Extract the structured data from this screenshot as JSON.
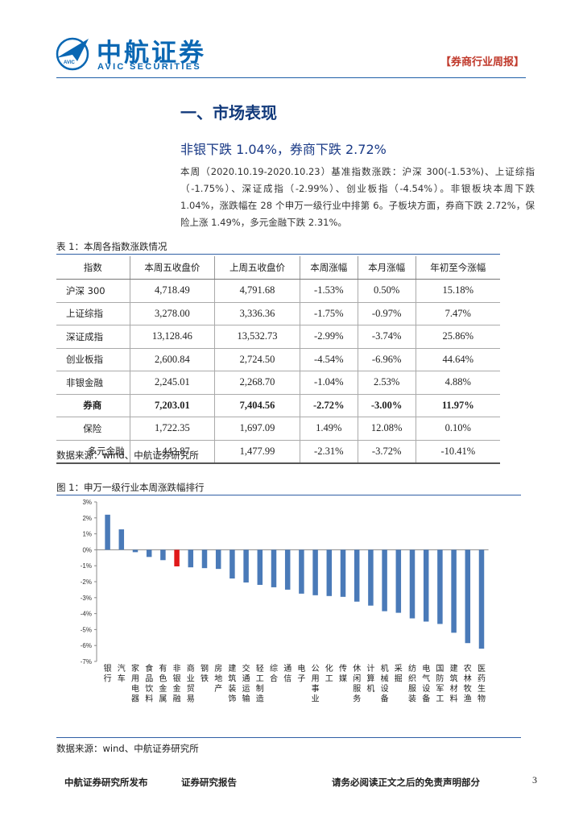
{
  "header": {
    "brand_cn": "中航证券",
    "brand_en": "AVIC SECURITIES",
    "logo_text": "AVIC",
    "report_type": "【券商行业周报】"
  },
  "section": {
    "title": "一、市场表现",
    "subtitle": "非银下跌 1.04%，券商下跌 2.72%",
    "paragraph": "本周（2020.10.19-2020.10.23）基准指数涨跌：沪深 300(-1.53%)、上证综指（-1.75%）、深证成指（-2.99%）、创业板指（-4.54%）。非银板块本周下跌 1.04%，涨跌幅在 28 个申万一级行业中排第 6。子板块方面，券商下跌 2.72%，保险上涨 1.49%，多元金融下跌 2.31%。"
  },
  "table1": {
    "caption": "表 1：本周各指数涨跌情况",
    "headers": [
      "指数",
      "本周五收盘价",
      "上周五收盘价",
      "本周涨幅",
      "本月涨幅",
      "年初至今涨幅"
    ],
    "rows": [
      [
        "沪深 300",
        "4,718.49",
        "4,791.68",
        "-1.53%",
        "0.50%",
        "15.18%"
      ],
      [
        "上证综指",
        "3,278.00",
        "3,336.36",
        "-1.75%",
        "-0.97%",
        "7.47%"
      ],
      [
        "深证成指",
        "13,128.46",
        "13,532.73",
        "-2.99%",
        "-3.74%",
        "25.86%"
      ],
      [
        "创业板指",
        "2,600.84",
        "2,724.50",
        "-4.54%",
        "-6.96%",
        "44.64%"
      ],
      [
        "非银金融",
        "2,245.01",
        "2,268.70",
        "-1.04%",
        "2.53%",
        "4.88%"
      ],
      [
        "券商",
        "7,203.01",
        "7,404.56",
        "-2.72%",
        "-3.00%",
        "11.97%"
      ],
      [
        "保险",
        "1,722.35",
        "1,697.09",
        "1.49%",
        "12.08%",
        "0.10%"
      ],
      [
        "多元金融",
        "1,443.87",
        "1,477.99",
        "-2.31%",
        "-3.72%",
        "-10.41%"
      ]
    ],
    "source": "数据来源：wind、中航证券研究所"
  },
  "figure1": {
    "caption": "图 1：申万一级行业本周涨跌幅排行",
    "source": "数据来源：wind、中航证券研究所"
  },
  "chart_data": {
    "type": "bar",
    "title": "",
    "xlabel": "",
    "ylabel": "",
    "ylim": [
      -7,
      3
    ],
    "ytick_labels": [
      "3%",
      "2%",
      "1%",
      "0%",
      "-1%",
      "-2%",
      "-3%",
      "-4%",
      "-5%",
      "-6%",
      "-7%"
    ],
    "grid": false,
    "categories": [
      "银行",
      "汽车",
      "家用电器",
      "食品饮料",
      "有色金属",
      "非银金融",
      "商业贸易",
      "钢铁",
      "房地产",
      "建筑装饰",
      "交通运输",
      "轻工制造",
      "综合",
      "通信",
      "电子",
      "公用事业",
      "化工",
      "传媒",
      "休闲服务",
      "计算机",
      "机械设备",
      "采掘",
      "纺织服装",
      "电气设备",
      "国防军工",
      "建筑材料",
      "农林牧渔",
      "医药生物"
    ],
    "values": [
      2.2,
      1.28,
      -0.15,
      -0.45,
      -0.65,
      -1.04,
      -1.1,
      -1.15,
      -1.2,
      -1.8,
      -2.05,
      -2.2,
      -2.35,
      -2.5,
      -2.75,
      -2.85,
      -2.9,
      -2.95,
      -3.25,
      -3.5,
      -3.85,
      -3.95,
      -4.3,
      -4.5,
      -4.65,
      -5.2,
      -5.85,
      -6.2
    ],
    "highlight_index": 5,
    "colors": {
      "bar": "#4a7ab8",
      "highlight": "#e0191a"
    }
  },
  "footer": {
    "left": "中航证券研究所发布",
    "middle": "证券研究报告",
    "right": "请务必阅读正文之后的免责声明部分",
    "page": "3"
  }
}
